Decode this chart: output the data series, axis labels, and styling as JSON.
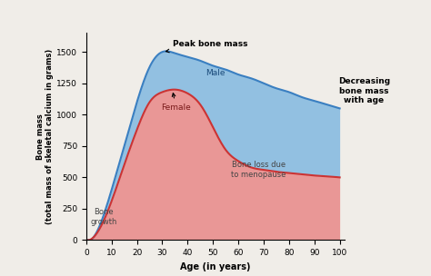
{
  "xlabel": "Age (in years)",
  "ylabel": "Bone mass\n(total mass of skeletal calcium in grams)",
  "xlim": [
    0,
    102
  ],
  "ylim": [
    0,
    1650
  ],
  "xticks": [
    0,
    10,
    20,
    30,
    40,
    50,
    60,
    70,
    80,
    90,
    100
  ],
  "yticks": [
    0,
    250,
    500,
    750,
    1000,
    1250,
    1500
  ],
  "male_color": "#3a7fc1",
  "female_color": "#cc3333",
  "fill_blue_color": "#82b8e0",
  "fill_pink_color": "#e88888",
  "background_color": "#f0ede8",
  "annotation_peak": "Peak bone mass",
  "annotation_decreasing": "Decreasing\nbone mass\nwith age",
  "annotation_female": "Female",
  "annotation_male": "Male",
  "annotation_bone_growth": "Bone\ngrowth",
  "annotation_menopause": "Bone loss due\nto menopause",
  "male_knots_x": [
    0,
    5,
    10,
    15,
    20,
    25,
    30,
    35,
    40,
    45,
    50,
    55,
    60,
    65,
    70,
    75,
    80,
    85,
    90,
    95,
    100
  ],
  "male_knots_y": [
    0,
    100,
    400,
    750,
    1100,
    1380,
    1500,
    1490,
    1460,
    1430,
    1390,
    1360,
    1320,
    1290,
    1250,
    1210,
    1180,
    1140,
    1110,
    1080,
    1050
  ],
  "female_knots_x": [
    0,
    5,
    10,
    15,
    20,
    25,
    30,
    35,
    40,
    45,
    50,
    55,
    60,
    65,
    70,
    75,
    80,
    85,
    90,
    95,
    100
  ],
  "female_knots_y": [
    0,
    80,
    310,
    600,
    880,
    1100,
    1180,
    1200,
    1170,
    1080,
    900,
    720,
    630,
    580,
    560,
    545,
    535,
    525,
    515,
    508,
    500
  ]
}
